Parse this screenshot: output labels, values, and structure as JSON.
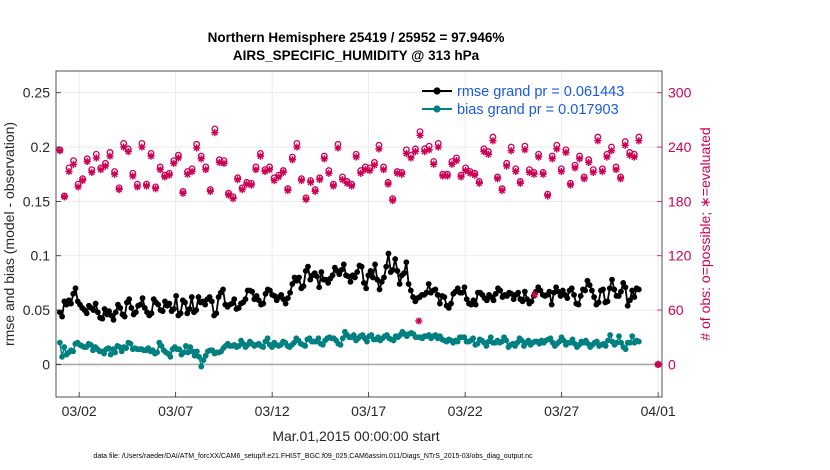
{
  "chart_data": {
    "type": "line",
    "title_line1": "Northern Hemisphere 25419 / 25952 = 97.946%",
    "title_line2": "AIRS_SPECIFIC_HUMIDITY @ 313 hPa",
    "xlabel": "Mar.01,2015 00:00:00 start",
    "ylabel_left": "rmse and bias (model - observation)",
    "ylabel_right": "# of obs: o=possible; ∗=evaluated",
    "footer": "data file: /Users/raeder/DAI/ATM_forcXX/CAM6_setup/f.e21.FHIST_BGC.f09_025.CAM6assim.011/Diags_NTrS_2015-03/obs_diag_output.nc",
    "x_range_days": [
      -0.2,
      31.2
    ],
    "ylim_left": [
      -0.03,
      0.27
    ],
    "ylim_right": [
      -36,
      324
    ],
    "x_ticks": [
      {
        "day": 1,
        "label": "03/02"
      },
      {
        "day": 6,
        "label": "03/07"
      },
      {
        "day": 11,
        "label": "03/12"
      },
      {
        "day": 16,
        "label": "03/17"
      },
      {
        "day": 21,
        "label": "03/22"
      },
      {
        "day": 26,
        "label": "03/27"
      },
      {
        "day": 31,
        "label": "04/01"
      }
    ],
    "y_ticks_left": [
      {
        "value": 0,
        "label": "0"
      },
      {
        "value": 0.05,
        "label": "0.05"
      },
      {
        "value": 0.1,
        "label": "0.1"
      },
      {
        "value": 0.15,
        "label": "0.15"
      },
      {
        "value": 0.2,
        "label": "0.2"
      },
      {
        "value": 0.25,
        "label": "0.25"
      }
    ],
    "y_ticks_right": [
      {
        "value": 0,
        "label": "0"
      },
      {
        "value": 60,
        "label": "60"
      },
      {
        "value": 120,
        "label": "120"
      },
      {
        "value": 180,
        "label": "180"
      },
      {
        "value": 240,
        "label": "240"
      },
      {
        "value": 300,
        "label": "300"
      }
    ],
    "series": [
      {
        "name": "rmse",
        "legend": "rmse grand pr = 0.061443",
        "color": "#000000",
        "axis": "left",
        "values": [
          0.048,
          0.044,
          0.058,
          0.055,
          0.059,
          0.056,
          0.065,
          0.07,
          0.058,
          0.055,
          0.052,
          0.05,
          0.047,
          0.054,
          0.052,
          0.05,
          0.056,
          0.048,
          0.043,
          0.042,
          0.051,
          0.046,
          0.049,
          0.045,
          0.041,
          0.048,
          0.055,
          0.052,
          0.046,
          0.044,
          0.057,
          0.06,
          0.052,
          0.046,
          0.048,
          0.054,
          0.055,
          0.061,
          0.052,
          0.048,
          0.045,
          0.047,
          0.06,
          0.057,
          0.055,
          0.05,
          0.049,
          0.058,
          0.054,
          0.056,
          0.049,
          0.051,
          0.063,
          0.045,
          0.047,
          0.059,
          0.057,
          0.047,
          0.051,
          0.062,
          0.048,
          0.05,
          0.062,
          0.057,
          0.058,
          0.055,
          0.06,
          0.062,
          0.058,
          0.045,
          0.047,
          0.062,
          0.066,
          0.069,
          0.055,
          0.053,
          0.055,
          0.056,
          0.06,
          0.051,
          0.052,
          0.056,
          0.057,
          0.06,
          0.068,
          0.068,
          0.067,
          0.06,
          0.063,
          0.059,
          0.055,
          0.056,
          0.065,
          0.069,
          0.068,
          0.064,
          0.063,
          0.059,
          0.062,
          0.064,
          0.06,
          0.056,
          0.061,
          0.066,
          0.074,
          0.08,
          0.077,
          0.08,
          0.07,
          0.072,
          0.086,
          0.09,
          0.078,
          0.082,
          0.084,
          0.081,
          0.071,
          0.085,
          0.078,
          0.078,
          0.075,
          0.079,
          0.082,
          0.089,
          0.086,
          0.083,
          0.087,
          0.092,
          0.082,
          0.081,
          0.076,
          0.082,
          0.08,
          0.085,
          0.091,
          0.09,
          0.075,
          0.07,
          0.082,
          0.086,
          0.08,
          0.092,
          0.078,
          0.069,
          0.076,
          0.08,
          0.09,
          0.102,
          0.085,
          0.087,
          0.097,
          0.086,
          0.074,
          0.082,
          0.084,
          0.094,
          0.074,
          0.068,
          0.062,
          0.058,
          0.061,
          0.062,
          0.064,
          0.064,
          0.066,
          0.074,
          0.066,
          0.068,
          0.069,
          0.064,
          0.056,
          0.063,
          0.062,
          0.054,
          0.052,
          0.056,
          0.065,
          0.067,
          0.07,
          0.066,
          0.066,
          0.071,
          0.06,
          0.056,
          0.055,
          0.059,
          0.055,
          0.066,
          0.066,
          0.064,
          0.061,
          0.059,
          0.064,
          0.062,
          0.059,
          0.065,
          0.07,
          0.068,
          0.062,
          0.064,
          0.063,
          0.066,
          0.065,
          0.06,
          0.064,
          0.066,
          0.06,
          0.058,
          0.067,
          0.06,
          0.056,
          0.058,
          0.063,
          0.067,
          0.071,
          0.068,
          0.064,
          0.063,
          0.064,
          0.067,
          0.055,
          0.066,
          0.071,
          0.067,
          0.063,
          0.068,
          0.064,
          0.061,
          0.068,
          0.07,
          0.064,
          0.056,
          0.055,
          0.063,
          0.069,
          0.068,
          0.077,
          0.073,
          0.068,
          0.062,
          0.055,
          0.057,
          0.068,
          0.069,
          0.057,
          0.058,
          0.07,
          0.078,
          0.069,
          0.063,
          0.063,
          0.067,
          0.075,
          0.071,
          0.054,
          0.059,
          0.068,
          0.062,
          0.07,
          0.069
        ]
      },
      {
        "name": "bias",
        "legend": "bias grand pr = 0.017903",
        "color": "#008080",
        "axis": "left",
        "values": [
          0.02,
          0.007,
          0.016,
          0.009,
          0.011,
          0.013,
          0.012,
          0.019,
          0.02,
          0.018,
          0.017,
          0.016,
          0.016,
          0.019,
          0.018,
          0.013,
          0.016,
          0.014,
          0.012,
          0.012,
          0.01,
          0.014,
          0.015,
          0.009,
          0.014,
          0.011,
          0.017,
          0.016,
          0.012,
          0.016,
          0.015,
          0.02,
          0.019,
          0.014,
          0.015,
          0.014,
          0.014,
          0.014,
          0.013,
          0.013,
          0.015,
          0.012,
          0.013,
          0.01,
          0.011,
          0.02,
          0.017,
          0.013,
          0.011,
          0.01,
          0.007,
          0.014,
          0.016,
          0.014,
          0.014,
          0.009,
          0.011,
          0.017,
          0.011,
          0.016,
          0.012,
          0.008,
          0.012,
          0.007,
          -0.002,
          0.004,
          0.008,
          0.012,
          0.013,
          0.013,
          0.01,
          0.011,
          0.011,
          0.012,
          0.015,
          0.017,
          0.019,
          0.017,
          0.017,
          0.018,
          0.016,
          0.017,
          0.022,
          0.019,
          0.016,
          0.018,
          0.021,
          0.019,
          0.017,
          0.018,
          0.019,
          0.017,
          0.016,
          0.021,
          0.024,
          0.018,
          0.016,
          0.02,
          0.018,
          0.017,
          0.018,
          0.021,
          0.02,
          0.017,
          0.016,
          0.018,
          0.02,
          0.024,
          0.022,
          0.019,
          0.018,
          0.017,
          0.023,
          0.024,
          0.021,
          0.021,
          0.021,
          0.024,
          0.019,
          0.018,
          0.022,
          0.024,
          0.025,
          0.024,
          0.024,
          0.022,
          0.019,
          0.018,
          0.024,
          0.03,
          0.027,
          0.025,
          0.025,
          0.027,
          0.022,
          0.024,
          0.026,
          0.027,
          0.024,
          0.021,
          0.026,
          0.027,
          0.023,
          0.023,
          0.025,
          0.022,
          0.024,
          0.026,
          0.027,
          0.024,
          0.023,
          0.022,
          0.026,
          0.025,
          0.027,
          0.03,
          0.028,
          0.026,
          0.028,
          0.029,
          0.028,
          0.025,
          0.025,
          0.025,
          0.024,
          0.026,
          0.026,
          0.027,
          0.024,
          0.026,
          0.027,
          0.024,
          0.026,
          0.023,
          0.022,
          0.021,
          0.023,
          0.022,
          0.02,
          0.022,
          0.021,
          0.025,
          0.025,
          0.025,
          0.021,
          0.021,
          0.022,
          0.024,
          0.018,
          0.019,
          0.023,
          0.022,
          0.02,
          0.017,
          0.021,
          0.025,
          0.02,
          0.02,
          0.022,
          0.02,
          0.021,
          0.025,
          0.022,
          0.016,
          0.018,
          0.019,
          0.017,
          0.02,
          0.024,
          0.022,
          0.017,
          0.02,
          0.022,
          0.018,
          0.02,
          0.021,
          0.021,
          0.019,
          0.022,
          0.02,
          0.022,
          0.023,
          0.024,
          0.02,
          0.017,
          0.019,
          0.021,
          0.025,
          0.022,
          0.018,
          0.02,
          0.02,
          0.023,
          0.019,
          0.016,
          0.018,
          0.021,
          0.02,
          0.022,
          0.019,
          0.016,
          0.018,
          0.02,
          0.021,
          0.017,
          0.018,
          0.019,
          0.017,
          0.022,
          0.027,
          0.021,
          0.018,
          0.02,
          0.026,
          0.02,
          0.016,
          0.014,
          0.02,
          0.02,
          0.026,
          0.02,
          0.022,
          0.021
        ]
      },
      {
        "name": "possible",
        "legend": "o=possible",
        "color": "#cc0055",
        "axis": "right",
        "marker": "circle",
        "values": [
          237,
          189,
          186,
          208,
          217,
          184,
          225,
          218,
          199,
          191,
          205,
          211,
          227,
          216,
          215,
          225,
          232,
          246,
          217,
          227,
          222,
          216,
          234,
          219,
          213,
          211,
          195,
          211,
          244,
          223,
          238,
          210,
          211,
          217,
          199,
          254,
          244,
          228,
          199,
          239,
          233,
          223,
          196,
          222,
          218,
          239,
          209,
          202,
          211,
          218,
          225,
          241,
          231,
          223,
          191,
          205,
          213,
          206,
          216,
          218,
          243,
          219,
          230,
          233,
          218,
          211,
          193,
          231,
          260,
          235,
          226,
          244,
          225,
          214,
          189,
          213,
          185,
          204,
          206,
          231,
          195,
          201,
          201,
          198,
          200,
          209,
          218,
          219,
          233,
          226,
          215,
          216,
          218,
          224,
          206,
          223,
          209,
          212,
          214,
          196,
          194,
          213,
          229,
          211,
          244,
          217,
          205,
          183,
          184,
          186,
          203,
          219,
          193,
          182,
          206,
          229,
          230,
          213,
          214,
          204,
          199,
          222,
          243,
          227,
          207,
          205,
          202,
          196,
          199,
          211,
          232,
          225,
          214,
          199,
          218,
          197,
          217,
          244,
          223,
          228,
          242,
          212,
          218,
          186,
          201,
          189,
          183,
          208,
          213,
          214,
          212,
          218,
          237,
          249,
          231,
          239,
          238,
          244,
          257,
          219,
          238,
          248,
          241,
          219,
          224,
          234,
          244,
          230,
          210,
          216,
          210,
          214,
          224,
          215,
          228,
          219,
          209,
          230,
          217,
          213,
          213,
          223,
          211,
          192,
          202,
          233,
          238,
          240,
          235,
          224,
          251,
          256,
          207,
          199,
          194,
          199,
          222,
          206,
          240,
          211,
          216,
          190,
          202,
          223,
          241,
          194,
          215,
          215,
          212,
          195,
          232,
          251,
          212,
          196,
          188,
          208,
          230,
          233,
          242,
          227,
          216,
          215,
          237,
          189,
          200,
          224,
          220,
          250,
          230,
          229,
          207,
          230,
          226,
          195,
          215,
          253,
          251,
          223,
          216,
          224,
          232,
          240,
          240,
          217,
          218,
          166,
          207,
          221,
          246,
          235,
          234,
          221,
          232,
          241,
          251
        ]
      },
      {
        "name": "evaluated",
        "legend": "∗=evaluated",
        "color": "#cc0055",
        "axis": "right",
        "marker": "star",
        "values": [
          236,
          186,
          185,
          204,
          213,
          184,
          221,
          215,
          196,
          188,
          203,
          208,
          224,
          213,
          212,
          221,
          228,
          242,
          215,
          224,
          219,
          214,
          230,
          216,
          210,
          209,
          193,
          208,
          240,
          220,
          235,
          208,
          208,
          214,
          196,
          250,
          240,
          224,
          197,
          235,
          230,
          220,
          194,
          219,
          215,
          236,
          207,
          200,
          209,
          216,
          222,
          237,
          228,
          220,
          189,
          203,
          210,
          204,
          213,
          215,
          239,
          216,
          227,
          230,
          215,
          208,
          191,
          228,
          256,
          232,
          223,
          240,
          222,
          211,
          187,
          210,
          183,
          202,
          204,
          228,
          193,
          199,
          199,
          196,
          198,
          207,
          215,
          216,
          230,
          223,
          213,
          213,
          215,
          221,
          203,
          220,
          207,
          210,
          212,
          194,
          192,
          211,
          226,
          209,
          240,
          214,
          203,
          181,
          182,
          184,
          201,
          216,
          191,
          180,
          204,
          226,
          227,
          210,
          211,
          202,
          197,
          219,
          239,
          224,
          204,
          203,
          200,
          194,
          197,
          209,
          229,
          222,
          211,
          197,
          215,
          195,
          214,
          240,
          220,
          225,
          238,
          210,
          215,
          184,
          199,
          187,
          181,
          206,
          211,
          212,
          210,
          216,
          233,
          245,
          228,
          235,
          235,
          240,
          253,
          216,
          235,
          244,
          237,
          216,
          221,
          231,
          240,
          227,
          208,
          213,
          208,
          212,
          221,
          212,
          225,
          216,
          207,
          227,
          214,
          211,
          211,
          220,
          209,
          190,
          200,
          230,
          235,
          237,
          232,
          221,
          247,
          252,
          205,
          197,
          192,
          197,
          219,
          204,
          236,
          209,
          213,
          188,
          200,
          220,
          237,
          192,
          212,
          212,
          210,
          193,
          229,
          247,
          210,
          194,
          186,
          206,
          227,
          230,
          238,
          224,
          213,
          212,
          234,
          187,
          198,
          221,
          217,
          246,
          227,
          226,
          205,
          227,
          223,
          193,
          212,
          249,
          247,
          220,
          213,
          221,
          229,
          237,
          236,
          214,
          215,
          163,
          205,
          218,
          242,
          232,
          231,
          218,
          229,
          237,
          247
        ]
      }
    ],
    "outliers": [
      {
        "name": "observation-count-marker",
        "day": 18.6,
        "value": 48,
        "axis": "right",
        "marker": "star"
      },
      {
        "name": "observation-count-marker",
        "day": 24.6,
        "value": 77,
        "axis": "right",
        "marker": "star"
      },
      {
        "name": "observation-count-marker",
        "day": 31.0,
        "value": 0,
        "axis": "right",
        "marker": "circle"
      },
      {
        "name": "observation-count-marker",
        "day": 31.0,
        "value": 0,
        "axis": "right",
        "marker": "star"
      }
    ],
    "colors": {
      "rmse": "#000000",
      "bias": "#008080",
      "count": "#cc0055",
      "right_axis": "#cc0055",
      "legend_text": "#1a5adc",
      "grid": "#e6e6e6",
      "zero_line": "#aaaaaa"
    }
  }
}
